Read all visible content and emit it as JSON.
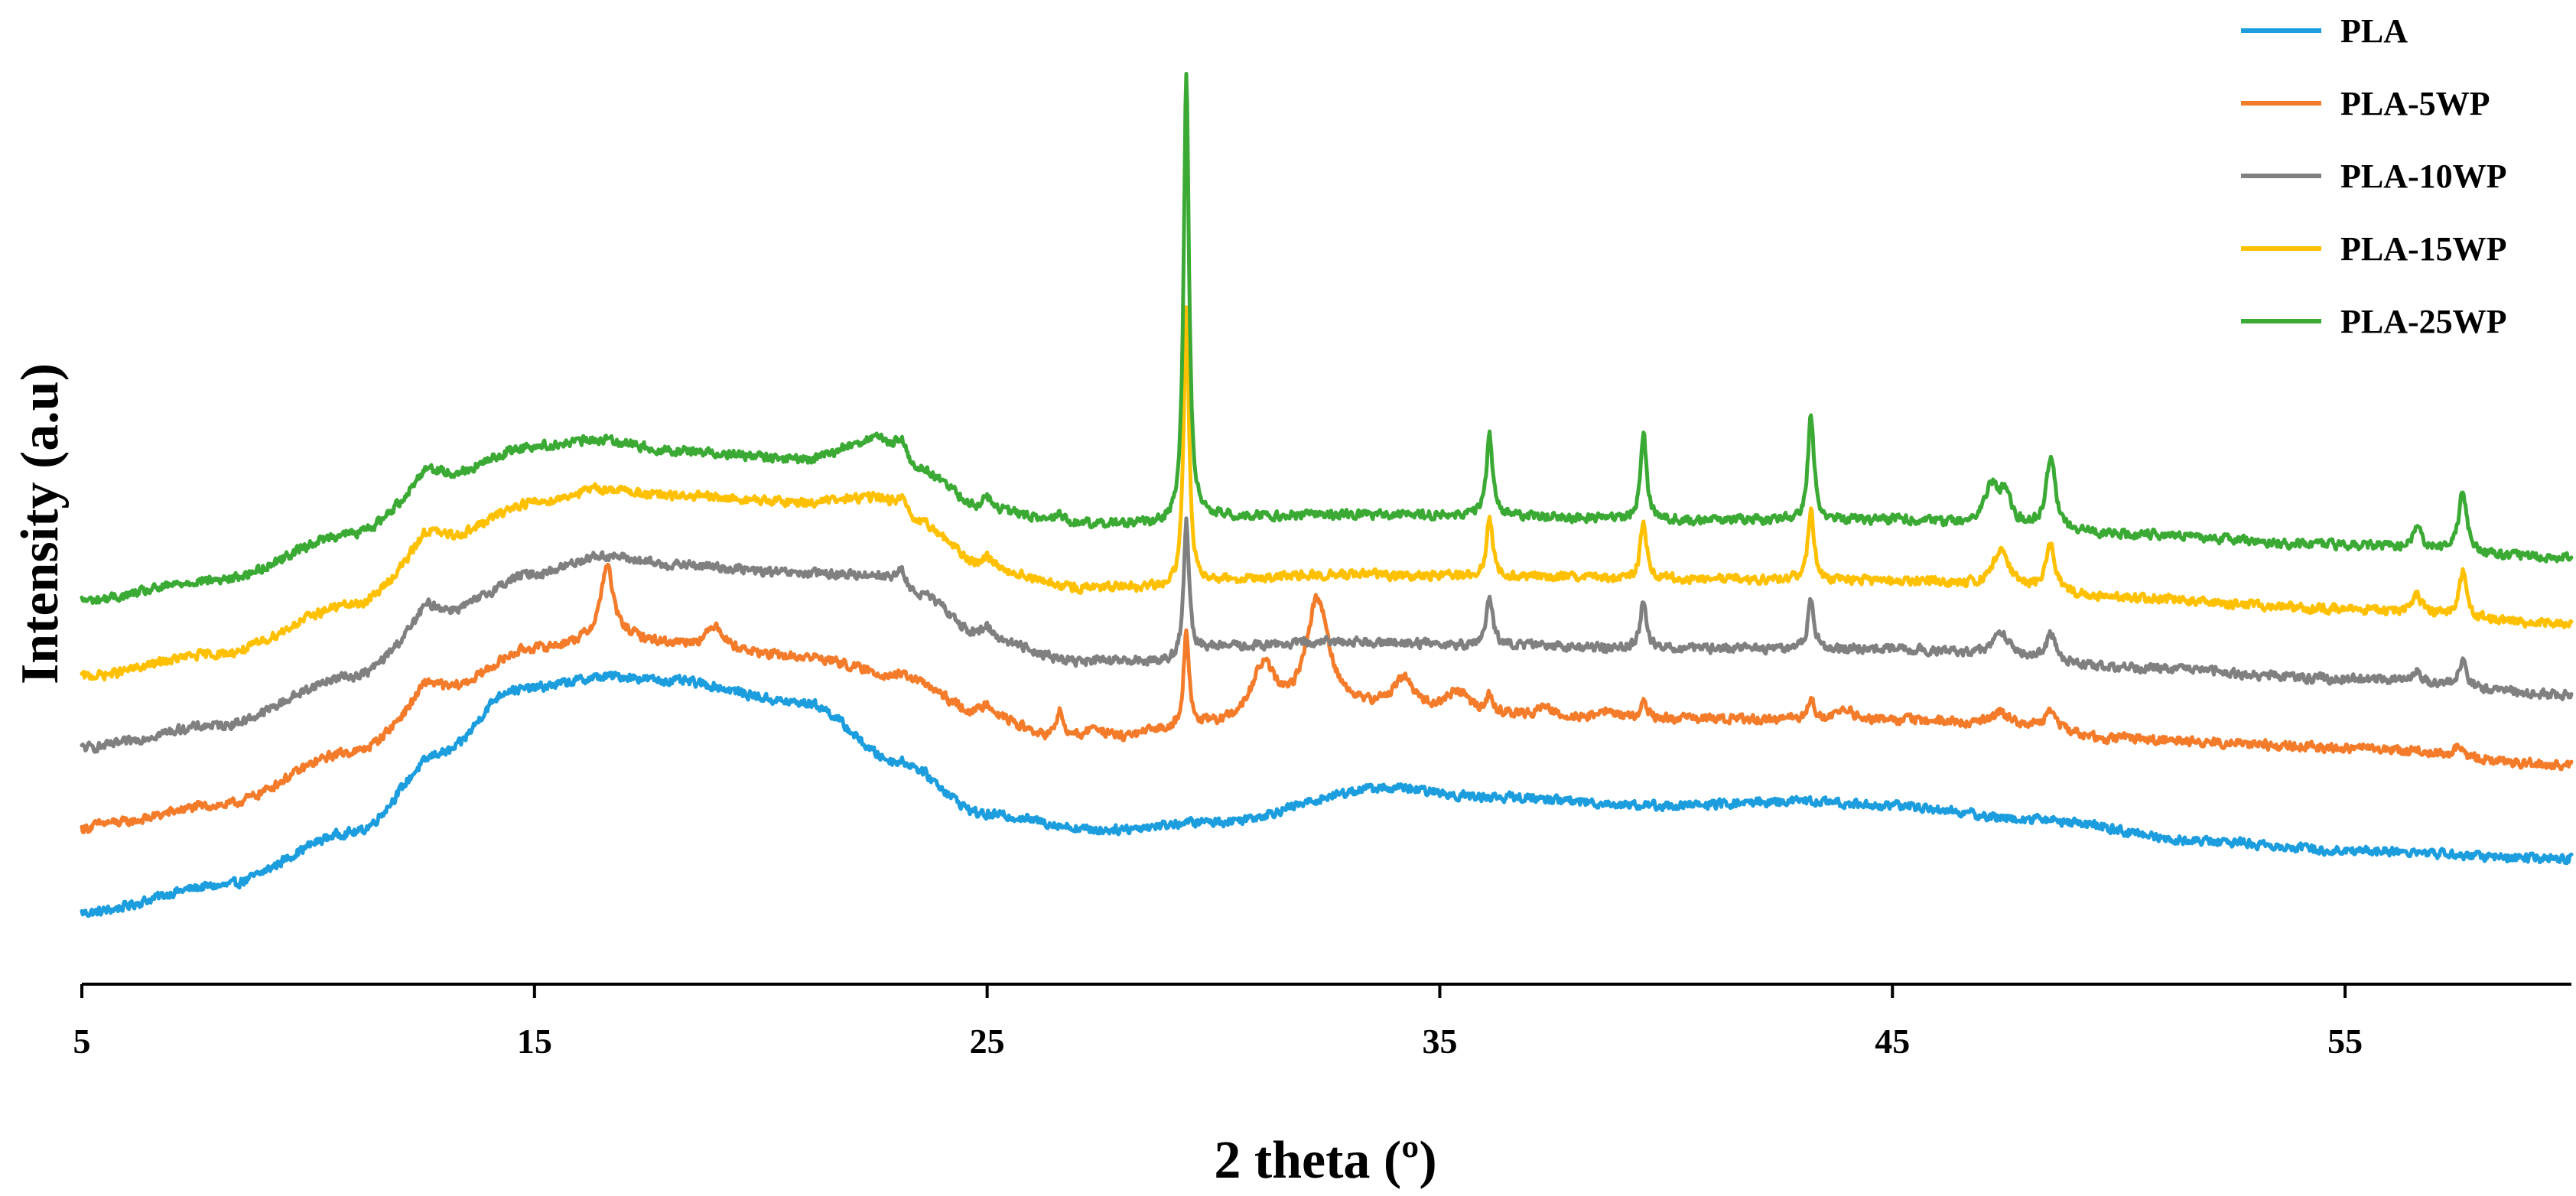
{
  "chart_data": {
    "type": "line",
    "xlabel": "2 theta (º)",
    "ylabel": "Intensity (a.u)",
    "xlim": [
      5,
      60
    ],
    "ylim": [
      0,
      100
    ],
    "x_ticks": [
      5,
      15,
      25,
      35,
      45,
      55
    ],
    "x_tick_labels": [
      "5",
      "15",
      "25",
      "35",
      "45",
      "55"
    ],
    "y_ticks_shown": false,
    "legend_position": "top-right",
    "series": [
      {
        "name": "PLA",
        "color": "#1B9DDE",
        "baseline": [
          [
            5,
            8
          ],
          [
            8,
            11
          ],
          [
            11,
            17
          ],
          [
            13,
            26
          ],
          [
            14.5,
            33
          ],
          [
            16.8,
            34.5
          ],
          [
            18,
            34
          ],
          [
            21,
            31.5
          ],
          [
            23,
            25
          ],
          [
            25,
            19
          ],
          [
            27.5,
            17.3
          ],
          [
            30,
            18.2
          ],
          [
            33.8,
            22
          ],
          [
            36,
            21
          ],
          [
            40,
            20
          ],
          [
            43,
            20.5
          ],
          [
            45,
            20
          ],
          [
            48,
            18.5
          ],
          [
            52,
            16
          ],
          [
            55,
            15
          ],
          [
            60,
            14
          ]
        ],
        "peaks": []
      },
      {
        "name": "PLA-5WP",
        "color": "#F47B2A",
        "baseline": [
          [
            5,
            17
          ],
          [
            8,
            20
          ],
          [
            11,
            26
          ],
          [
            13,
            33
          ],
          [
            15,
            37.6
          ],
          [
            16.8,
            39
          ],
          [
            18,
            38.2
          ],
          [
            21,
            36.6
          ],
          [
            23,
            34.6
          ],
          [
            25,
            30
          ],
          [
            26.5,
            27.6
          ],
          [
            28,
            27.6
          ],
          [
            29,
            28.4
          ],
          [
            30,
            28.8
          ],
          [
            33,
            30.6
          ],
          [
            36,
            30
          ],
          [
            40,
            29.7
          ],
          [
            45,
            29.6
          ],
          [
            48,
            29
          ],
          [
            50,
            27.5
          ],
          [
            55,
            26.5
          ],
          [
            60,
            24.6
          ]
        ],
        "peaks": [
          [
            5.5,
            0.8,
            0.5
          ],
          [
            12.6,
            1.5,
            0.25
          ],
          [
            16.6,
            8,
            0.16
          ],
          [
            19,
            2.5,
            0.2
          ],
          [
            25,
            1.5,
            0.15
          ],
          [
            26.6,
            3,
            0.08
          ],
          [
            27.4,
            1.2,
            0.15
          ],
          [
            29.4,
            11,
            0.07
          ],
          [
            31.1,
            6,
            0.32
          ],
          [
            32.3,
            12.5,
            0.3
          ],
          [
            34.2,
            3.5,
            0.3
          ],
          [
            35.4,
            2.5,
            0.3
          ],
          [
            36.1,
            2,
            0.08
          ],
          [
            37.3,
            1,
            0.2
          ],
          [
            38.7,
            0.8,
            0.2
          ],
          [
            39.5,
            2,
            0.08
          ],
          [
            43.2,
            2.2,
            0.1
          ],
          [
            44,
            1,
            0.2
          ],
          [
            47.4,
            1.5,
            0.2
          ],
          [
            48.5,
            1.8,
            0.12
          ],
          [
            57.5,
            1,
            0.1
          ]
        ]
      },
      {
        "name": "PLA-10WP",
        "color": "#808080",
        "baseline": [
          [
            5,
            26.5
          ],
          [
            8,
            29
          ],
          [
            11,
            34.5
          ],
          [
            13,
            41.7
          ],
          [
            15,
            46
          ],
          [
            16.5,
            48
          ],
          [
            18,
            47
          ],
          [
            21,
            46
          ],
          [
            22.5,
            45.8
          ],
          [
            23.5,
            43.5
          ],
          [
            25,
            38.6
          ],
          [
            27,
            36.2
          ],
          [
            29,
            36.2
          ],
          [
            30,
            37.8
          ],
          [
            33,
            38.4
          ],
          [
            36,
            38
          ],
          [
            40,
            37.6
          ],
          [
            45,
            37.6
          ],
          [
            47,
            37
          ],
          [
            50,
            35.5
          ],
          [
            55,
            34.2
          ],
          [
            60,
            32.4
          ]
        ],
        "peaks": [
          [
            12.6,
            1.5,
            0.25
          ],
          [
            23.1,
            2,
            0.15
          ],
          [
            25,
            1.5,
            0.15
          ],
          [
            29.4,
            15,
            0.07
          ],
          [
            36.1,
            5.5,
            0.08
          ],
          [
            39.5,
            5.5,
            0.08
          ],
          [
            43.2,
            5.5,
            0.08
          ],
          [
            47.4,
            2.5,
            0.2
          ],
          [
            48.5,
            3,
            0.12
          ],
          [
            56.6,
            1.5,
            0.1
          ],
          [
            57.6,
            3,
            0.1
          ]
        ]
      },
      {
        "name": "PLA-15WP",
        "color": "#FFC000",
        "baseline": [
          [
            5,
            34.5
          ],
          [
            8,
            37
          ],
          [
            11,
            42.5
          ],
          [
            13,
            50
          ],
          [
            15,
            54
          ],
          [
            16.5,
            55.5
          ],
          [
            18,
            54.7
          ],
          [
            21,
            54
          ],
          [
            22.5,
            54.5
          ],
          [
            23.5,
            51.5
          ],
          [
            25,
            46.5
          ],
          [
            27,
            44.4
          ],
          [
            29,
            44.4
          ],
          [
            30,
            45.3
          ],
          [
            33,
            45.9
          ],
          [
            36,
            45.7
          ],
          [
            40,
            45.4
          ],
          [
            45,
            45.2
          ],
          [
            47,
            44.8
          ],
          [
            50,
            43.3
          ],
          [
            55,
            42
          ],
          [
            60,
            40.4
          ]
        ],
        "peaks": [
          [
            12.6,
            1.5,
            0.25
          ],
          [
            23.1,
            2,
            0.15
          ],
          [
            25,
            1.5,
            0.15
          ],
          [
            29.4,
            31,
            0.07
          ],
          [
            36.1,
            6.5,
            0.08
          ],
          [
            39.5,
            6.5,
            0.08
          ],
          [
            43.2,
            8,
            0.08
          ],
          [
            47.4,
            4,
            0.2
          ],
          [
            48.5,
            5,
            0.12
          ],
          [
            56.6,
            2,
            0.1
          ],
          [
            57.6,
            5,
            0.1
          ]
        ]
      },
      {
        "name": "PLA-25WP",
        "color": "#3BAA34",
        "baseline": [
          [
            5,
            43
          ],
          [
            8,
            45.3
          ],
          [
            11,
            50.5
          ],
          [
            13,
            57
          ],
          [
            15,
            60.3
          ],
          [
            16.5,
            61
          ],
          [
            18,
            59.8
          ],
          [
            21,
            58.8
          ],
          [
            22.5,
            61
          ],
          [
            23.5,
            57.5
          ],
          [
            25,
            53
          ],
          [
            27,
            51.6
          ],
          [
            29,
            51.6
          ],
          [
            30,
            52.4
          ],
          [
            33,
            52.6
          ],
          [
            36,
            52.5
          ],
          [
            40,
            52
          ],
          [
            45,
            52
          ],
          [
            47,
            51.5
          ],
          [
            50,
            50.4
          ],
          [
            55,
            49.2
          ],
          [
            60,
            47.8
          ]
        ],
        "peaks": [
          [
            12.6,
            1.5,
            0.25
          ],
          [
            23.1,
            2.5,
            0.15
          ],
          [
            25,
            1.5,
            0.15
          ],
          [
            26.6,
            1,
            0.1
          ],
          [
            29.4,
            50,
            0.07
          ],
          [
            36.1,
            9,
            0.08
          ],
          [
            39.5,
            9.5,
            0.08
          ],
          [
            43.2,
            12,
            0.08
          ],
          [
            47.2,
            4.5,
            0.2
          ],
          [
            47.5,
            3,
            0.12
          ],
          [
            48.5,
            8,
            0.12
          ],
          [
            56.6,
            2.5,
            0.1
          ],
          [
            57.6,
            7,
            0.1
          ]
        ]
      }
    ]
  }
}
